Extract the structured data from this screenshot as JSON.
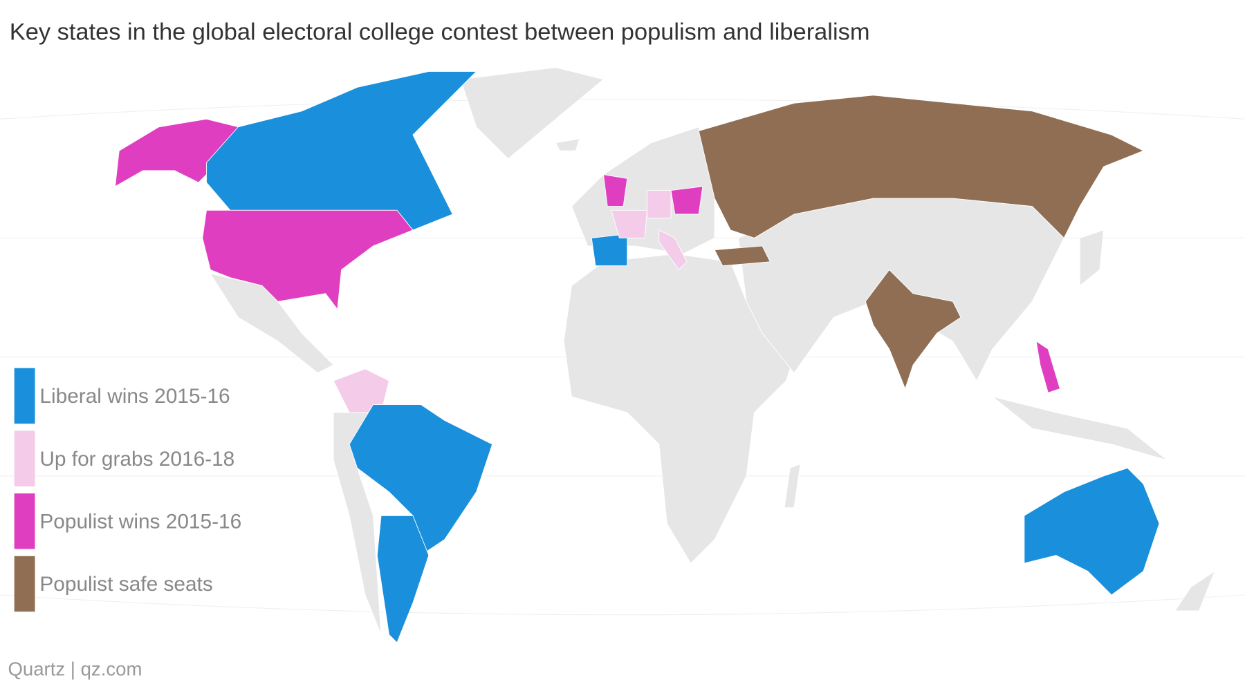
{
  "title": "Key states in the global electoral college contest between populism and liberalism",
  "legend": [
    {
      "name": "Liberal wins 2015-16",
      "color": "#1a8fdb"
    },
    {
      "name": "Up for grabs 2016-18",
      "color": "#f4cbe9"
    },
    {
      "name": "Populist wins 2015-16",
      "color": "#e03ec0"
    },
    {
      "name": "Populist safe seats",
      "color": "#8f6e54"
    }
  ],
  "source": "Quartz | qz.com"
}
